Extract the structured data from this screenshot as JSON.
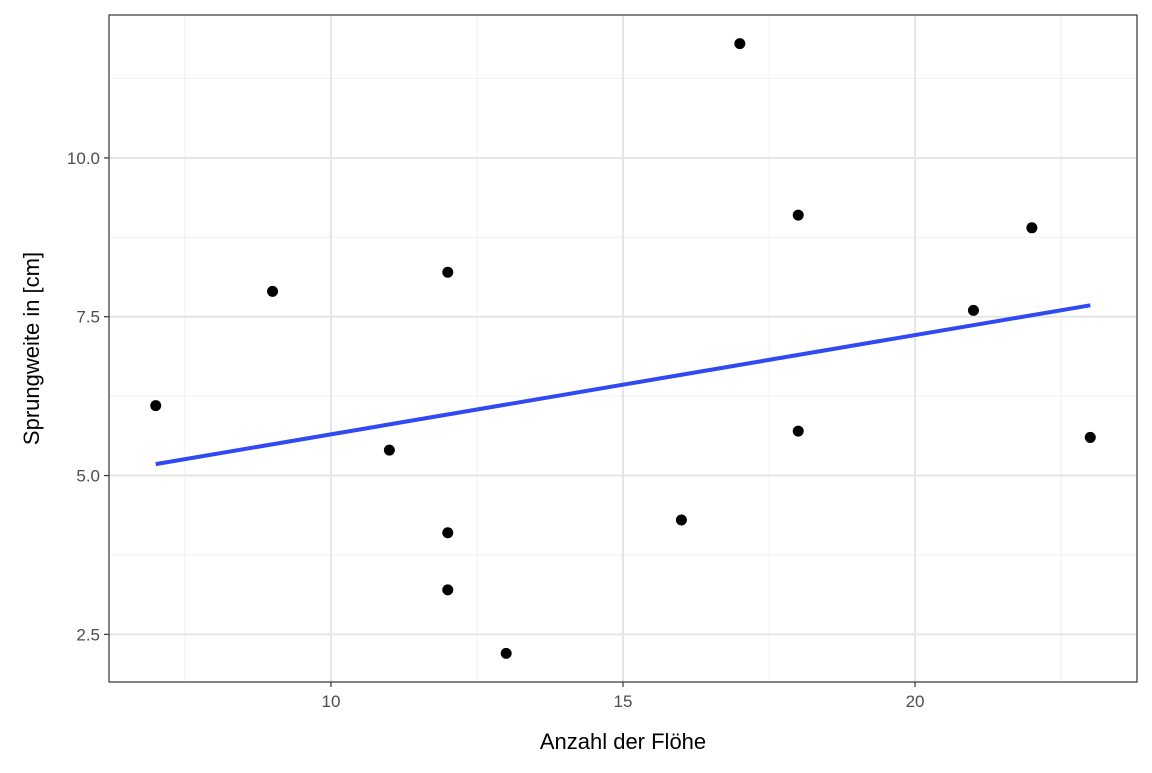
{
  "chart_data": {
    "type": "scatter",
    "title": "",
    "xlabel": "Anzahl der Flöhe",
    "ylabel": "Sprungweite in [cm]",
    "xlim": [
      6.2,
      23.8
    ],
    "ylim": [
      1.75,
      12.25
    ],
    "x_ticks": [
      10,
      15,
      20
    ],
    "x_tick_labels": [
      "10",
      "15",
      "20"
    ],
    "y_ticks": [
      2.5,
      5.0,
      7.5,
      10.0
    ],
    "y_tick_labels": [
      "2.5",
      "5.0",
      "7.5",
      "10.0"
    ],
    "grid": true,
    "legend": "none",
    "points": [
      {
        "x": 7,
        "y": 6.1
      },
      {
        "x": 9,
        "y": 7.9
      },
      {
        "x": 11,
        "y": 5.4
      },
      {
        "x": 12,
        "y": 8.2
      },
      {
        "x": 12,
        "y": 4.1
      },
      {
        "x": 12,
        "y": 3.2
      },
      {
        "x": 13,
        "y": 2.2
      },
      {
        "x": 16,
        "y": 4.3
      },
      {
        "x": 17,
        "y": 11.8
      },
      {
        "x": 18,
        "y": 9.1
      },
      {
        "x": 18,
        "y": 5.7
      },
      {
        "x": 21,
        "y": 7.6
      },
      {
        "x": 22,
        "y": 8.9
      },
      {
        "x": 23,
        "y": 5.6
      }
    ],
    "regression_line": {
      "x": [
        7,
        23
      ],
      "y": [
        5.18,
        7.68
      ]
    },
    "colors": {
      "points": "#000000",
      "line": "#3049f2",
      "grid_major": "#e5e5e5",
      "grid_minor": "#f0f0f0",
      "panel_border": "#333333",
      "tick_text": "#4d4d4d"
    }
  }
}
